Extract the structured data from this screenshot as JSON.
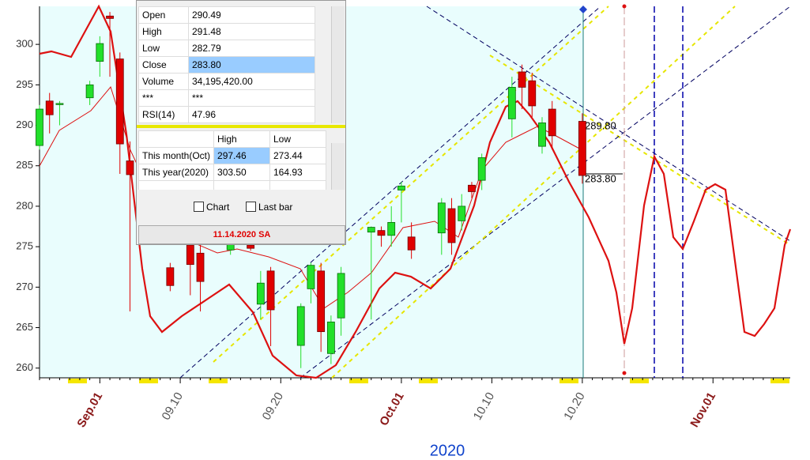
{
  "chart_data": {
    "type": "candlestick",
    "categories": [
      null,
      null,
      null,
      null,
      null,
      null,
      "Sep.01",
      null,
      null,
      null,
      null,
      null,
      null,
      null,
      "09.10",
      null,
      null,
      null,
      null,
      null,
      null,
      null,
      null,
      null,
      "09.20",
      null,
      null,
      null,
      null,
      null,
      null,
      null,
      null,
      null,
      null,
      null,
      "Oct.01",
      null,
      null,
      null,
      null,
      null,
      null,
      null,
      null,
      "10.10",
      null,
      null,
      null,
      null,
      null,
      null,
      null,
      null,
      "10.20",
      null,
      null,
      null,
      null,
      null,
      null,
      null,
      null,
      null,
      null,
      null,
      null,
      "Nov.01",
      null,
      null,
      null,
      null,
      null,
      null,
      null
    ],
    "open": [
      287.5,
      293,
      292.6,
      null,
      null,
      293.4,
      297.9,
      303.5,
      298.2,
      285.6,
      null,
      null,
      null,
      272.4,
      null,
      275.2,
      274.2,
      null,
      null,
      274.6,
      null,
      275.2,
      267.9,
      272,
      null,
      null,
      262.8,
      269.8,
      272,
      261.8,
      266.2,
      null,
      null,
      276.8,
      277,
      276.4,
      282,
      276.2,
      null,
      null,
      276.7,
      279.7,
      278.2,
      282.6,
      283.2,
      null,
      null,
      290.8,
      296.6,
      295.5,
      287.4,
      292,
      null,
      null,
      290.49,
      null,
      null,
      null,
      null,
      null,
      null,
      null,
      null,
      null,
      null,
      null,
      null,
      null,
      null,
      null,
      null,
      null,
      null,
      null,
      null
    ],
    "high": [
      292.5,
      294,
      293,
      null,
      null,
      295.5,
      301,
      304,
      299,
      288,
      null,
      null,
      null,
      273,
      null,
      277,
      276,
      null,
      null,
      276,
      null,
      276,
      272,
      272.5,
      null,
      null,
      268,
      273,
      273,
      266.5,
      272.5,
      null,
      null,
      277.5,
      277.5,
      280,
      283,
      278,
      null,
      null,
      281,
      281,
      281.5,
      283,
      286.5,
      null,
      null,
      296,
      297.5,
      296.5,
      291,
      293,
      null,
      null,
      291.48,
      null,
      null,
      null,
      null,
      null,
      null,
      null,
      null,
      null,
      null,
      null,
      null,
      null,
      null,
      null,
      null,
      null,
      null,
      null,
      null
    ],
    "low": [
      287,
      289,
      290,
      null,
      null,
      292.5,
      296,
      296,
      284,
      267,
      null,
      null,
      null,
      269.5,
      null,
      269,
      267,
      null,
      null,
      274,
      null,
      274.5,
      266,
      262.7,
      null,
      null,
      260,
      268,
      262,
      260.5,
      264,
      null,
      null,
      266,
      275,
      275,
      278,
      273.5,
      null,
      null,
      274,
      274,
      277,
      281,
      282,
      null,
      null,
      288.5,
      292,
      291,
      286.5,
      287,
      null,
      null,
      282.79,
      null,
      null,
      null,
      null,
      null,
      null,
      null,
      null,
      null,
      null,
      null,
      null,
      null,
      null,
      null,
      null,
      null,
      null,
      null,
      null
    ],
    "close": [
      292,
      291.3,
      292.7,
      null,
      null,
      295,
      300.1,
      303.2,
      287.7,
      283.9,
      null,
      null,
      null,
      270.2,
      null,
      272.8,
      270.7,
      null,
      null,
      275.4,
      null,
      274.8,
      270.5,
      267.2,
      null,
      null,
      267.6,
      272.7,
      264.5,
      265.7,
      271.7,
      null,
      null,
      277.4,
      276.4,
      278,
      282.5,
      274.6,
      null,
      null,
      280.4,
      275.5,
      280,
      281.8,
      286,
      null,
      null,
      294.7,
      294.7,
      292.4,
      290.3,
      288.7,
      null,
      null,
      283.8,
      null,
      null,
      null,
      null,
      null,
      null,
      null,
      null,
      null,
      null,
      null,
      null,
      null,
      null,
      null,
      null,
      null,
      null,
      null,
      null
    ],
    "up_color": "#22e02a",
    "down_color": "#e00000",
    "ylim": [
      258.8,
      304.7
    ],
    "yticks": [
      260,
      265,
      270,
      275,
      280,
      285,
      290,
      295,
      300
    ],
    "annotations": [
      "289.80",
      "283.80"
    ],
    "xlabel": "2020"
  },
  "data_window": {
    "rows": [
      [
        "Open",
        "290.49"
      ],
      [
        "High",
        "291.48"
      ],
      [
        "Low",
        "282.79"
      ],
      [
        "Close",
        "283.80"
      ],
      [
        "Volume",
        "34,195,420.00"
      ],
      [
        "***",
        "***"
      ],
      [
        "RSI(14)",
        "47.96"
      ]
    ],
    "range_header": [
      "High",
      "Low"
    ],
    "range_rows": [
      [
        "This month(Oct)",
        "297.46",
        "273.44"
      ],
      [
        "This year(2020)",
        "303.50",
        "164.93"
      ]
    ],
    "checkboxes": [
      "Chart",
      "Last bar"
    ],
    "date": "11.14.2020 SA"
  }
}
